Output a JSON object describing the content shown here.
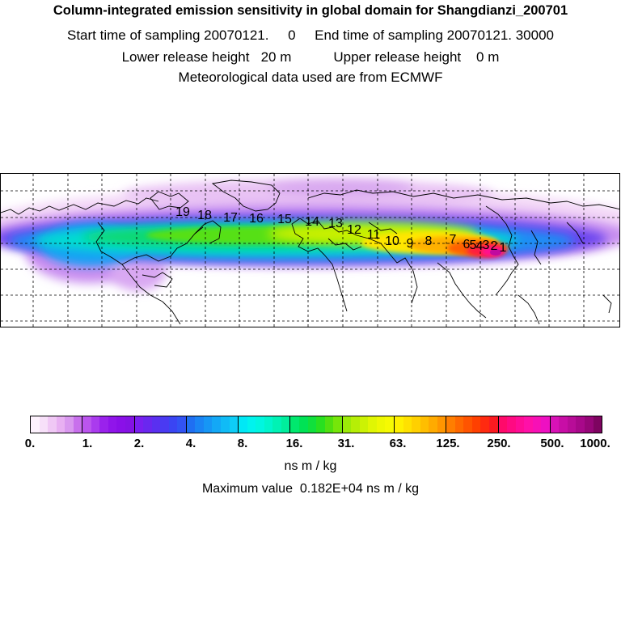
{
  "header": {
    "title": "Column-integrated emission sensitivity in global domain for Shangdianzi_200701",
    "line1": "Start time of sampling 20070121.     0     End time of sampling 20070121. 30000",
    "line2": "Lower release height   20 m           Upper release height    0 m",
    "line3": "Meteorological data used are from ECMWF"
  },
  "map": {
    "trajectory_labels": [
      "1",
      "2",
      "3",
      "4",
      "5",
      "6",
      "7",
      "8",
      "9",
      "10",
      "11",
      "12",
      "13",
      "14",
      "15",
      "16",
      "17",
      "18",
      "19"
    ]
  },
  "colorbar": {
    "tick_labels": [
      "0.",
      "1.",
      "2.",
      "4.",
      "8.",
      "16.",
      "31.",
      "63.",
      "125.",
      "250.",
      "500.",
      "1000."
    ],
    "colors": [
      "#fdf2fd",
      "#f7e0f9",
      "#f0c8f5",
      "#e8b0f2",
      "#d998ef",
      "#c870ec",
      "#bb55ee",
      "#aa3bee",
      "#9a22ec",
      "#9015ea",
      "#8a10e8",
      "#8412e4",
      "#7a1ff0",
      "#6a27ef",
      "#5a30f0",
      "#4a3af2",
      "#3a45f3",
      "#3253f4",
      "#1f6ff2",
      "#1a84f4",
      "#1696f5",
      "#13a8f6",
      "#10bbf6",
      "#0ecdf7",
      "#00e8f6",
      "#00f3ee",
      "#00f6e0",
      "#00f5cc",
      "#00f2b4",
      "#00ee9c",
      "#00e86e",
      "#00e255",
      "#10e03c",
      "#28e020",
      "#50e010",
      "#76e60a",
      "#9cea08",
      "#b6ee06",
      "#ccf204",
      "#e0f603",
      "#eef802",
      "#f6fa02",
      "#fff000",
      "#ffe100",
      "#ffd000",
      "#ffbe00",
      "#ffab00",
      "#ff9600",
      "#ff7e00",
      "#ff6800",
      "#ff5400",
      "#ff4000",
      "#ff2a10",
      "#fb1a20",
      "#ff0a6a",
      "#ff0a82",
      "#ff0c96",
      "#ff10a8",
      "#f710b6",
      "#ee10c2",
      "#d812b6",
      "#c80ea6",
      "#b80c98",
      "#a8088a",
      "#960678",
      "#7e0460"
    ],
    "units": "ns m / kg",
    "max_value": "Maximum value  0.182E+04 ns m / kg"
  }
}
